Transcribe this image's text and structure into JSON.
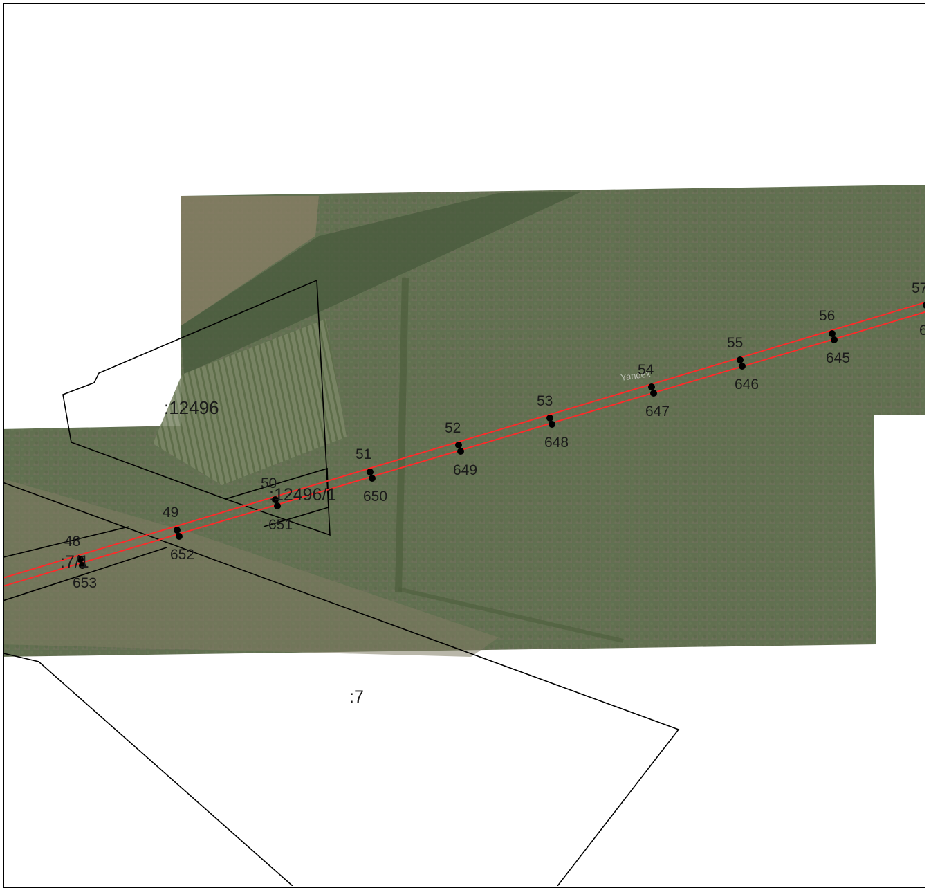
{
  "map": {
    "watermark": "Yandex",
    "parcels": {
      "p12496": ":12496",
      "p12496_1": ":12496/1",
      "p7": ":7",
      "p7_1": ":7/1"
    },
    "upper_points": [
      "48",
      "49",
      "50",
      "51",
      "52",
      "53",
      "54",
      "55",
      "56",
      "57"
    ],
    "lower_points": [
      "653",
      "652",
      "651",
      "650",
      "649",
      "648",
      "647",
      "646",
      "645",
      "6"
    ],
    "colors": {
      "route_line": "#ff2a2a",
      "boundary": "#000000",
      "point": "#000000",
      "imagery_base": "#5a6b4a"
    }
  }
}
